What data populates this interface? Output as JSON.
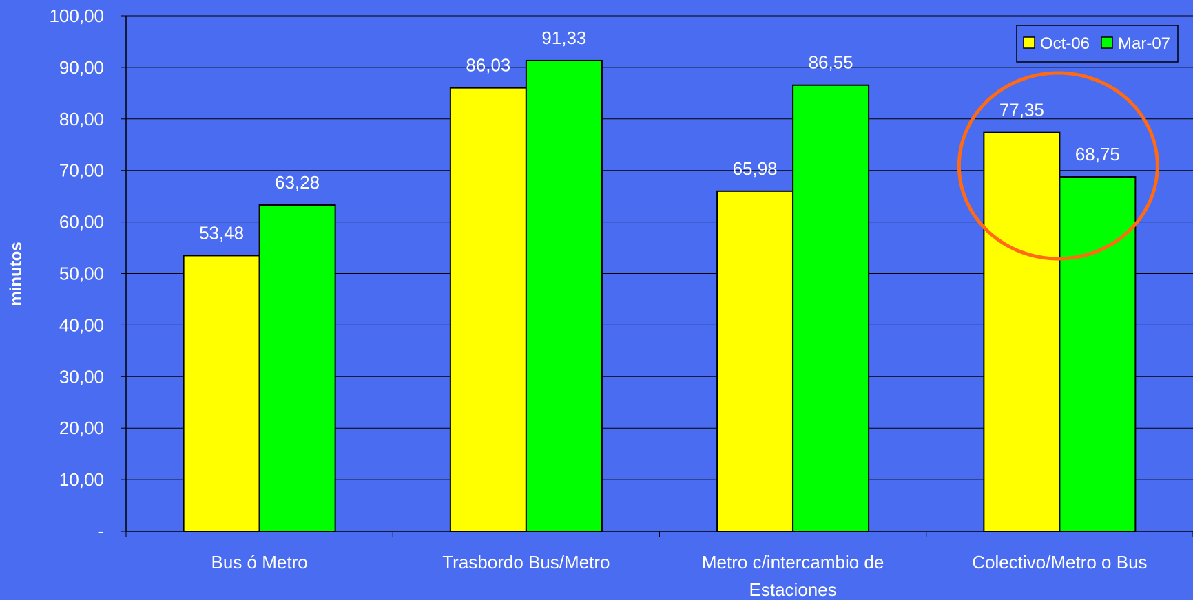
{
  "chart_data": {
    "type": "bar",
    "categories": [
      "Bus ó Metro",
      "Trasbordo Bus/Metro",
      "Metro c/intercambio de Estaciones",
      "Colectivo/Metro o Bus"
    ],
    "category_lines": [
      [
        "Bus ó Metro"
      ],
      [
        "Trasbordo Bus/Metro"
      ],
      [
        "Metro c/intercambio de",
        "Estaciones"
      ],
      [
        "Colectivo/Metro o Bus"
      ]
    ],
    "series": [
      {
        "name": "Oct-06",
        "color": "#ffff00",
        "values": [
          53.48,
          86.03,
          65.98,
          77.35
        ],
        "labels": [
          "53,48",
          "86,03",
          "65,98",
          "77,35"
        ]
      },
      {
        "name": "Mar-07",
        "color": "#00ff00",
        "values": [
          63.28,
          91.33,
          86.55,
          68.75
        ],
        "labels": [
          "63,28",
          "91,33",
          "86,55",
          "68,75"
        ]
      }
    ],
    "title": "",
    "xlabel": "",
    "ylabel": "minutos",
    "ylim": [
      0,
      100
    ],
    "yticks": [
      0,
      10,
      20,
      30,
      40,
      50,
      60,
      70,
      80,
      90,
      100
    ],
    "ytick_labels": [
      "-",
      "10,00",
      "20,00",
      "30,00",
      "40,00",
      "50,00",
      "60,00",
      "70,00",
      "80,00",
      "90,00",
      "100,00"
    ],
    "grid": true,
    "legend_position": "top-right",
    "highlight": {
      "category": "Colectivo/Metro o Bus",
      "shape": "ellipse",
      "color": "#ff6a13"
    },
    "background_color": "#4a6cf0",
    "text_color": "#ffffff"
  }
}
